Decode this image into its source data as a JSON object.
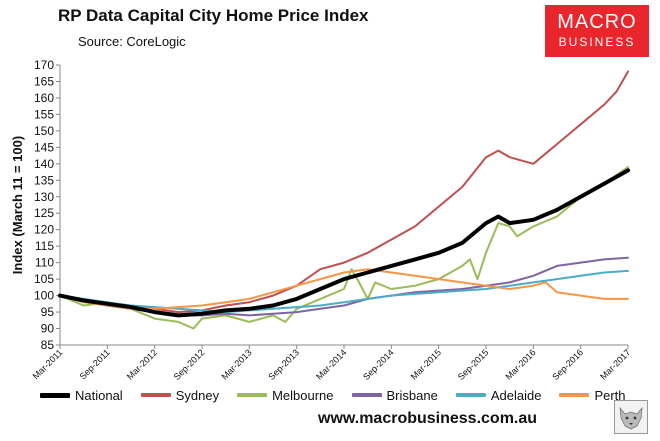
{
  "header": {
    "title": "RP Data Capital City Home Price Index",
    "source": "Source: CoreLogic"
  },
  "logo": {
    "line1": "MACRO",
    "line2": "BUSINESS"
  },
  "footer": {
    "website": "www.macrobusiness.com.au"
  },
  "chart_data": {
    "type": "line",
    "title": "RP Data Capital City Home Price Index",
    "ylabel": "Index (March 11 = 100)",
    "xlabel": "",
    "ylim": [
      85,
      170
    ],
    "yticks": [
      85,
      90,
      95,
      100,
      105,
      110,
      115,
      120,
      125,
      130,
      135,
      140,
      145,
      150,
      155,
      160,
      165,
      170
    ],
    "xlim": [
      2011.17,
      2017.17
    ],
    "xticks": [
      {
        "label": "Mar-2011",
        "x": 2011.17
      },
      {
        "label": "Sep-2011",
        "x": 2011.67
      },
      {
        "label": "Mar-2012",
        "x": 2012.17
      },
      {
        "label": "Sep-2012",
        "x": 2012.67
      },
      {
        "label": "Mar-2013",
        "x": 2013.17
      },
      {
        "label": "Sep-2013",
        "x": 2013.67
      },
      {
        "label": "Mar-2014",
        "x": 2014.17
      },
      {
        "label": "Sep-2014",
        "x": 2014.67
      },
      {
        "label": "Mar-2015",
        "x": 2015.17
      },
      {
        "label": "Sep-2015",
        "x": 2015.67
      },
      {
        "label": "Mar-2016",
        "x": 2016.17
      },
      {
        "label": "Sep-2016",
        "x": 2016.67
      },
      {
        "label": "Mar-2017",
        "x": 2017.17
      }
    ],
    "grid": false,
    "legend_position": "bottom",
    "series": [
      {
        "name": "Sydney",
        "color": "#c0504d",
        "width": 2,
        "points": [
          [
            2011.17,
            100
          ],
          [
            2011.42,
            98.5
          ],
          [
            2011.67,
            97
          ],
          [
            2011.92,
            96.5
          ],
          [
            2012.17,
            96
          ],
          [
            2012.42,
            95
          ],
          [
            2012.67,
            95.5
          ],
          [
            2012.92,
            97
          ],
          [
            2013.17,
            98
          ],
          [
            2013.42,
            100
          ],
          [
            2013.67,
            103
          ],
          [
            2013.92,
            108
          ],
          [
            2014.17,
            110
          ],
          [
            2014.42,
            113
          ],
          [
            2014.67,
            117
          ],
          [
            2014.92,
            121
          ],
          [
            2015.17,
            127
          ],
          [
            2015.42,
            133
          ],
          [
            2015.67,
            142
          ],
          [
            2015.8,
            144
          ],
          [
            2015.92,
            142
          ],
          [
            2016.17,
            140
          ],
          [
            2016.42,
            146
          ],
          [
            2016.67,
            152
          ],
          [
            2016.92,
            158
          ],
          [
            2017.05,
            162
          ],
          [
            2017.17,
            168
          ]
        ]
      },
      {
        "name": "Melbourne",
        "color": "#9bbb59",
        "width": 2,
        "points": [
          [
            2011.17,
            100
          ],
          [
            2011.42,
            97
          ],
          [
            2011.67,
            98
          ],
          [
            2011.92,
            96
          ],
          [
            2012.17,
            93
          ],
          [
            2012.42,
            92
          ],
          [
            2012.58,
            90
          ],
          [
            2012.67,
            93
          ],
          [
            2012.92,
            94
          ],
          [
            2013.17,
            92
          ],
          [
            2013.42,
            94
          ],
          [
            2013.55,
            92
          ],
          [
            2013.67,
            96
          ],
          [
            2013.92,
            99
          ],
          [
            2014.17,
            102
          ],
          [
            2014.25,
            108
          ],
          [
            2014.33,
            104
          ],
          [
            2014.42,
            99
          ],
          [
            2014.5,
            104
          ],
          [
            2014.67,
            102
          ],
          [
            2014.92,
            103
          ],
          [
            2015.17,
            105
          ],
          [
            2015.42,
            109
          ],
          [
            2015.5,
            111
          ],
          [
            2015.58,
            105
          ],
          [
            2015.67,
            113
          ],
          [
            2015.8,
            122
          ],
          [
            2015.92,
            121
          ],
          [
            2016.0,
            118
          ],
          [
            2016.17,
            121
          ],
          [
            2016.42,
            124
          ],
          [
            2016.67,
            130
          ],
          [
            2016.92,
            134
          ],
          [
            2017.17,
            139
          ]
        ]
      },
      {
        "name": "Brisbane",
        "color": "#8064a2",
        "width": 2,
        "points": [
          [
            2011.17,
            100
          ],
          [
            2011.67,
            97
          ],
          [
            2012.17,
            95
          ],
          [
            2012.42,
            94
          ],
          [
            2012.67,
            94
          ],
          [
            2012.92,
            94.5
          ],
          [
            2013.17,
            94
          ],
          [
            2013.42,
            94.5
          ],
          [
            2013.67,
            95
          ],
          [
            2013.92,
            96
          ],
          [
            2014.17,
            97
          ],
          [
            2014.42,
            99
          ],
          [
            2014.67,
            100
          ],
          [
            2014.92,
            101
          ],
          [
            2015.17,
            101.5
          ],
          [
            2015.42,
            102
          ],
          [
            2015.67,
            103
          ],
          [
            2015.92,
            104
          ],
          [
            2016.17,
            106
          ],
          [
            2016.42,
            109
          ],
          [
            2016.67,
            110
          ],
          [
            2016.92,
            111
          ],
          [
            2017.17,
            111.5
          ]
        ]
      },
      {
        "name": "Adelaide",
        "color": "#4bacc6",
        "width": 2,
        "points": [
          [
            2011.17,
            100
          ],
          [
            2011.42,
            99
          ],
          [
            2011.67,
            98
          ],
          [
            2011.92,
            97
          ],
          [
            2012.17,
            96.5
          ],
          [
            2012.42,
            96
          ],
          [
            2012.67,
            95.5
          ],
          [
            2012.92,
            95
          ],
          [
            2013.17,
            95.5
          ],
          [
            2013.42,
            96
          ],
          [
            2013.67,
            96.5
          ],
          [
            2013.92,
            97
          ],
          [
            2014.17,
            98
          ],
          [
            2014.42,
            99
          ],
          [
            2014.67,
            100
          ],
          [
            2014.92,
            100.5
          ],
          [
            2015.17,
            101
          ],
          [
            2015.42,
            101.5
          ],
          [
            2015.67,
            102
          ],
          [
            2015.92,
            103
          ],
          [
            2016.17,
            104
          ],
          [
            2016.42,
            105
          ],
          [
            2016.67,
            106
          ],
          [
            2016.92,
            107
          ],
          [
            2017.17,
            107.5
          ]
        ]
      },
      {
        "name": "Perth",
        "color": "#f79646",
        "width": 2,
        "points": [
          [
            2011.17,
            100
          ],
          [
            2011.42,
            98
          ],
          [
            2011.67,
            97
          ],
          [
            2011.92,
            96
          ],
          [
            2012.17,
            96
          ],
          [
            2012.42,
            96.5
          ],
          [
            2012.67,
            97
          ],
          [
            2012.92,
            98
          ],
          [
            2013.17,
            99
          ],
          [
            2013.42,
            101
          ],
          [
            2013.67,
            103
          ],
          [
            2013.92,
            105
          ],
          [
            2014.17,
            107
          ],
          [
            2014.42,
            108
          ],
          [
            2014.67,
            107
          ],
          [
            2014.92,
            106
          ],
          [
            2015.17,
            105
          ],
          [
            2015.42,
            104
          ],
          [
            2015.67,
            103
          ],
          [
            2015.92,
            102
          ],
          [
            2016.17,
            103
          ],
          [
            2016.3,
            104
          ],
          [
            2016.42,
            101
          ],
          [
            2016.67,
            100
          ],
          [
            2016.92,
            99
          ],
          [
            2017.17,
            99
          ]
        ]
      },
      {
        "name": "National",
        "color": "#000000",
        "width": 4,
        "points": [
          [
            2011.17,
            100
          ],
          [
            2011.42,
            98.5
          ],
          [
            2011.67,
            97.5
          ],
          [
            2011.92,
            96.5
          ],
          [
            2012.17,
            95
          ],
          [
            2012.42,
            94
          ],
          [
            2012.67,
            94.5
          ],
          [
            2012.92,
            95.5
          ],
          [
            2013.17,
            96
          ],
          [
            2013.42,
            97
          ],
          [
            2013.67,
            99
          ],
          [
            2013.92,
            102
          ],
          [
            2014.17,
            105
          ],
          [
            2014.42,
            107
          ],
          [
            2014.67,
            109
          ],
          [
            2014.92,
            111
          ],
          [
            2015.17,
            113
          ],
          [
            2015.42,
            116
          ],
          [
            2015.67,
            122
          ],
          [
            2015.8,
            124
          ],
          [
            2015.92,
            122
          ],
          [
            2016.17,
            123
          ],
          [
            2016.42,
            126
          ],
          [
            2016.67,
            130
          ],
          [
            2016.92,
            134
          ],
          [
            2017.17,
            138
          ]
        ]
      }
    ],
    "legend": [
      {
        "name": "National",
        "color": "#000000",
        "thick": true
      },
      {
        "name": "Sydney",
        "color": "#c0504d"
      },
      {
        "name": "Melbourne",
        "color": "#9bbb59"
      },
      {
        "name": "Brisbane",
        "color": "#8064a2"
      },
      {
        "name": "Adelaide",
        "color": "#4bacc6"
      },
      {
        "name": "Perth",
        "color": "#f79646"
      }
    ]
  }
}
